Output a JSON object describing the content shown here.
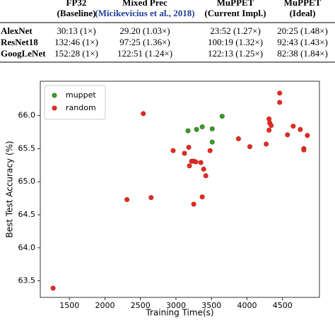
{
  "table": {
    "columns": [
      {
        "line1": "FP32",
        "line2": "(Baseline)"
      },
      {
        "line1": "Mixed Prec",
        "line2": "(Micikevicius et al., 2018)"
      },
      {
        "line1": "MuPPET",
        "line2": "(Current Impl.)"
      },
      {
        "line1": "MuPPET",
        "line2": "(Ideal)"
      }
    ],
    "rows": [
      {
        "label": "AlexNet",
        "cells": [
          "30:13 (1×)",
          "29.20 (1.03×)",
          "23:52 (1.27×)",
          "20:25 (1.48×)"
        ]
      },
      {
        "label": "ResNet18",
        "cells": [
          "132:46 (1×)",
          "97:25 (1.36×)",
          "100:19 (1.32×)",
          "92:43 (1.43×)"
        ]
      },
      {
        "label": "GoogLeNet",
        "cells": [
          "152:28 (1×)",
          "122:51 (1.24×)",
          "122:13 (1.25×)",
          "82:38 (1.84×)"
        ]
      }
    ]
  },
  "chart_data": {
    "type": "scatter",
    "xlabel": "Training Time(s)",
    "ylabel": "Best Test Accuracy (%)",
    "xlim": [
      1090,
      5020
    ],
    "ylim": [
      63.25,
      66.52
    ],
    "xticks": [
      1500,
      2000,
      2500,
      3000,
      3500,
      4000,
      4500
    ],
    "yticks": [
      {
        "value": 63.5,
        "label": "63.5"
      },
      {
        "value": 64,
        "label": "64.0"
      },
      {
        "value": 64.5,
        "label": "64.5"
      },
      {
        "value": 65,
        "label": "65.0"
      },
      {
        "value": 65.5,
        "label": "65.5"
      },
      {
        "value": 66,
        "label": "66.0"
      }
    ],
    "grid": false,
    "legend": "upper left",
    "series": [
      {
        "name": "muppet",
        "color": "#2ca02c",
        "x": [
          3170,
          3290,
          3370,
          3510,
          3650,
          3510
        ],
        "values": [
          65.77,
          65.79,
          65.83,
          65.8,
          65.99,
          65.6
        ]
      },
      {
        "name": "random",
        "color": "#e8291f",
        "x": [
          1270,
          2310,
          2650,
          2540,
          2960,
          3120,
          3180,
          3220,
          3250,
          3280,
          3350,
          3390,
          3420,
          3190,
          3250,
          3370,
          3480,
          3880,
          4040,
          4270,
          4310,
          4320,
          4340,
          4310,
          4460,
          4460,
          4570,
          4650,
          4750,
          4800,
          4800,
          4850
        ],
        "values": [
          63.39,
          64.73,
          64.76,
          66.03,
          65.47,
          65.43,
          65.52,
          65.31,
          65.31,
          65.3,
          65.29,
          65.19,
          65.09,
          65.24,
          64.66,
          64.77,
          65.47,
          65.65,
          65.53,
          65.57,
          65.95,
          65.89,
          65.85,
          65.78,
          66.34,
          66.2,
          65.71,
          65.84,
          65.79,
          65.5,
          65.48,
          65.7
        ]
      }
    ]
  }
}
